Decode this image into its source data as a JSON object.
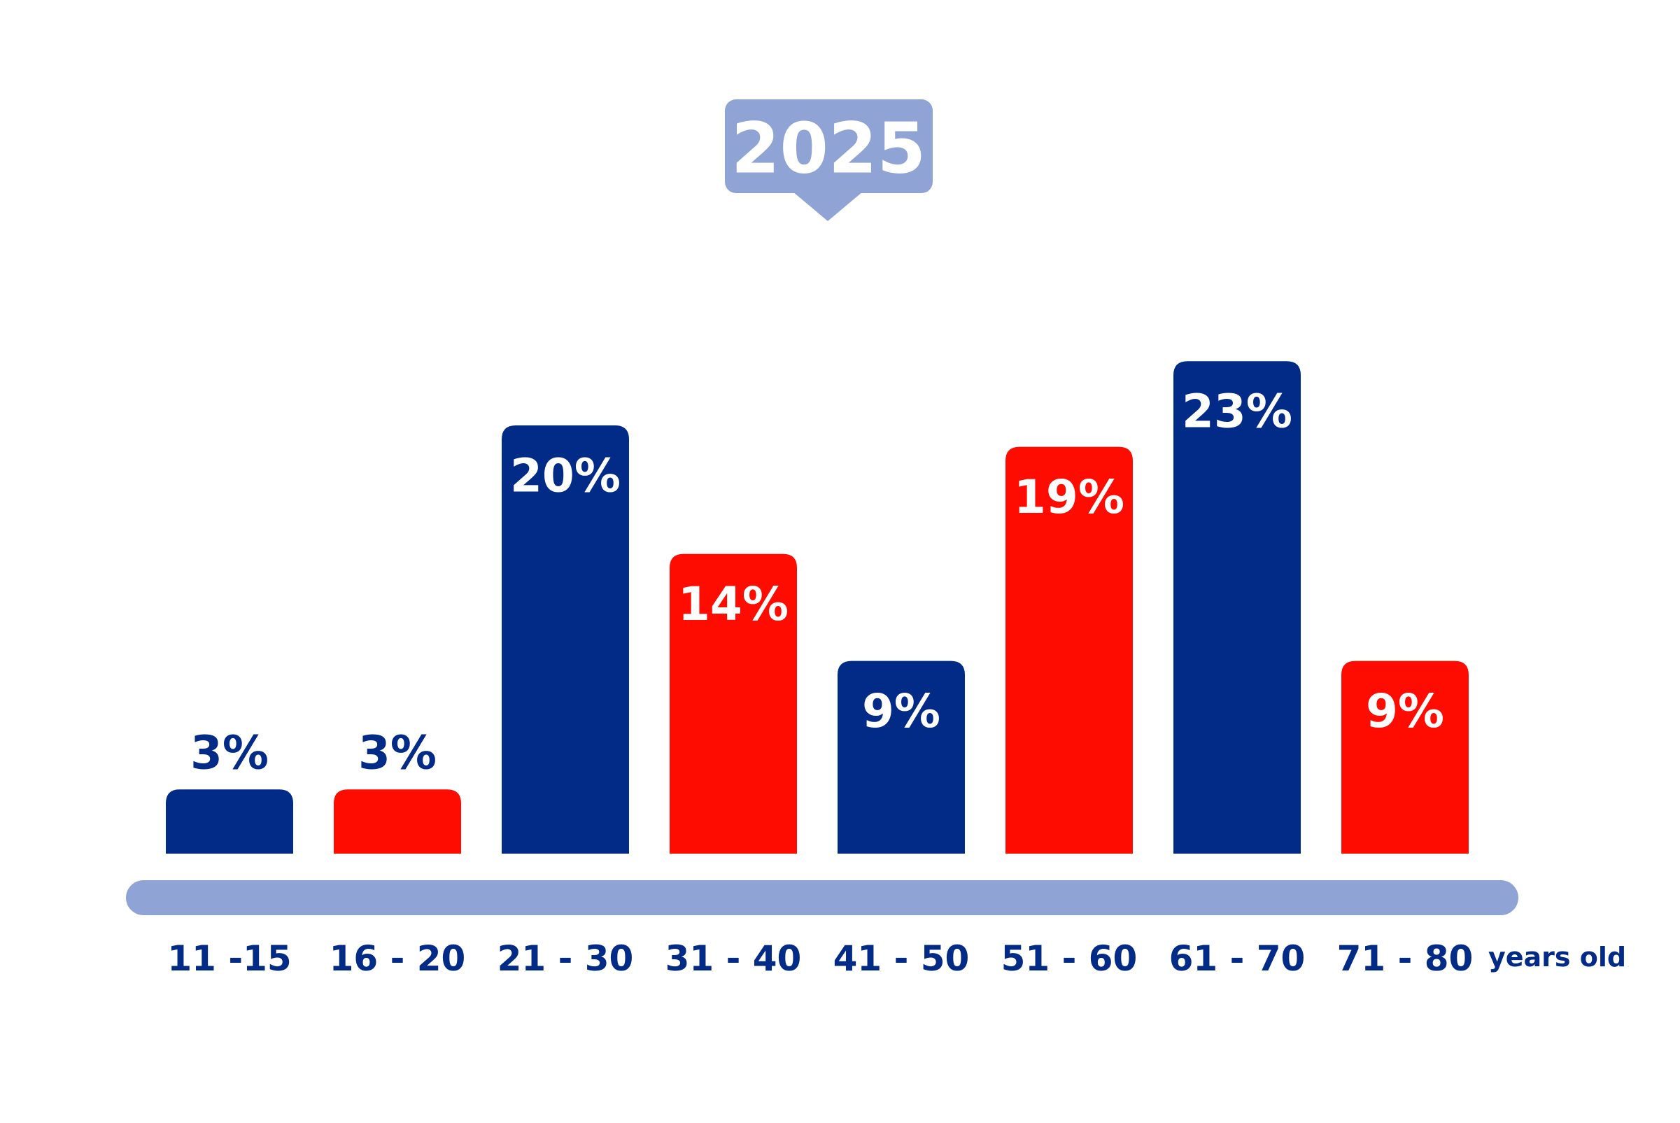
{
  "chart_data": {
    "type": "bar",
    "title": "2025",
    "categories": [
      "11 -15",
      "16 - 20",
      "21 - 30",
      "31 - 40",
      "41 - 50",
      "51 - 60",
      "61 - 70",
      "71 - 80"
    ],
    "values": [
      3,
      3,
      20,
      14,
      9,
      19,
      23,
      9
    ],
    "value_labels": [
      "3%",
      "3%",
      "20%",
      "14%",
      "9%",
      "19%",
      "23%",
      "9%"
    ],
    "bar_colors": [
      "#022a87",
      "#fe0b02",
      "#022a87",
      "#fe0b02",
      "#022a87",
      "#fe0b02",
      "#022a87",
      "#fe0b02"
    ],
    "xlabel": "years old",
    "ylabel": "",
    "ylim": [
      0,
      25
    ],
    "grid": false,
    "legend": "none",
    "colors": {
      "blue": "#022a87",
      "red": "#fe0b02",
      "axis": "#8fa3d4",
      "badge": "#8fa3d4",
      "badge_text": "#ffffff",
      "outside_label": "#022a87",
      "inside_label": "#ffffff"
    }
  }
}
